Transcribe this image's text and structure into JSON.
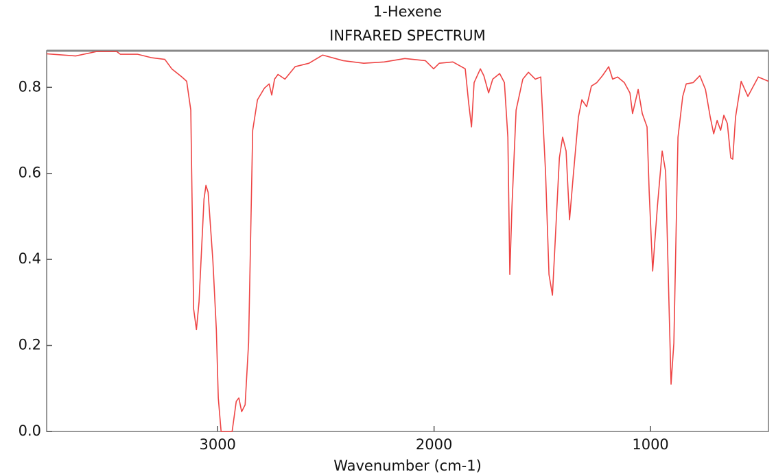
{
  "chart_data": {
    "type": "line",
    "title": "1-Hexene",
    "subtitle": "INFRARED SPECTRUM",
    "xlabel": "Wavenumber (cm-1)",
    "color": "#ee4444",
    "xlim": [
      3790,
      455
    ],
    "ylim": [
      0,
      0.885
    ],
    "xticks": [
      3000,
      2000,
      1000
    ],
    "yticks": [
      {
        "value": 0,
        "label": "0.0"
      },
      0.2,
      0.4,
      0.6,
      0.8
    ],
    "x": [
      3790,
      3656,
      3561,
      3466,
      3450,
      3371,
      3307,
      3244,
      3212,
      3165,
      3143,
      3124,
      3111,
      3098,
      3086,
      3063,
      3054,
      3044,
      3022,
      3006,
      2997,
      2984,
      2933,
      2914,
      2902,
      2889,
      2873,
      2857,
      2838,
      2816,
      2784,
      2762,
      2750,
      2737,
      2721,
      2689,
      2642,
      2578,
      2515,
      2420,
      2325,
      2230,
      2135,
      2040,
      2002,
      1976,
      1913,
      1856,
      1840,
      1827,
      1815,
      1786,
      1770,
      1748,
      1729,
      1697,
      1675,
      1659,
      1650,
      1640,
      1621,
      1590,
      1564,
      1532,
      1507,
      1485,
      1469,
      1453,
      1437,
      1421,
      1406,
      1390,
      1374,
      1358,
      1333,
      1317,
      1295,
      1273,
      1248,
      1222,
      1193,
      1175,
      1152,
      1121,
      1095,
      1083,
      1057,
      1038,
      1016,
      1006,
      990,
      968,
      946,
      930,
      914,
      905,
      892,
      873,
      851,
      835,
      803,
      772,
      746,
      724,
      708,
      692,
      676,
      661,
      645,
      629,
      620,
      607,
      581,
      550,
      502,
      455
    ],
    "values": [
      0.878,
      0.873,
      0.883,
      0.883,
      0.877,
      0.877,
      0.869,
      0.865,
      0.843,
      0.824,
      0.814,
      0.747,
      0.285,
      0.237,
      0.301,
      0.54,
      0.572,
      0.556,
      0.397,
      0.237,
      0.078,
      0.0,
      0.0,
      0.07,
      0.078,
      0.046,
      0.062,
      0.206,
      0.7,
      0.771,
      0.798,
      0.808,
      0.782,
      0.819,
      0.83,
      0.819,
      0.848,
      0.856,
      0.875,
      0.862,
      0.856,
      0.859,
      0.867,
      0.862,
      0.843,
      0.856,
      0.859,
      0.843,
      0.763,
      0.708,
      0.811,
      0.843,
      0.827,
      0.787,
      0.819,
      0.832,
      0.811,
      0.684,
      0.365,
      0.524,
      0.747,
      0.819,
      0.835,
      0.819,
      0.824,
      0.604,
      0.365,
      0.317,
      0.476,
      0.636,
      0.684,
      0.652,
      0.492,
      0.588,
      0.731,
      0.771,
      0.755,
      0.803,
      0.811,
      0.827,
      0.848,
      0.819,
      0.824,
      0.811,
      0.787,
      0.739,
      0.795,
      0.739,
      0.708,
      0.556,
      0.373,
      0.524,
      0.652,
      0.604,
      0.285,
      0.11,
      0.206,
      0.684,
      0.779,
      0.808,
      0.811,
      0.827,
      0.795,
      0.731,
      0.692,
      0.723,
      0.7,
      0.735,
      0.716,
      0.636,
      0.633,
      0.731,
      0.814,
      0.779,
      0.824,
      0.814
    ]
  }
}
